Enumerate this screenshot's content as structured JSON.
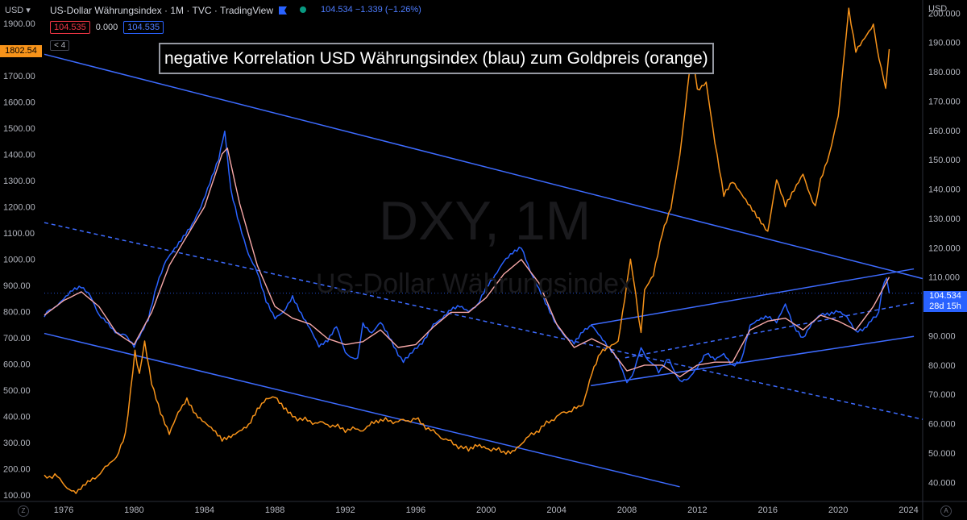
{
  "header": {
    "currency": "USD",
    "title": "US-Dollar Währungsindex · 1M · TVC · TradingView",
    "ohlc": "104.534 −1.339 (−1.26%)",
    "badge_sell": "104.535",
    "badge_spread": "0.000",
    "badge_buy": "104.535",
    "indicator_count": "4"
  },
  "right_axis_unit": "USD",
  "annotation": "negative Korrelation USD Währungsindex (blau) zum Goldpreis (orange)",
  "watermark": {
    "symbol": "DXY, 1M",
    "name": "US-Dollar Währungsindex"
  },
  "price_labels": {
    "gold_current": "1802.54",
    "dxy_current": "104.534",
    "dxy_countdown": "28d 15h"
  },
  "colors": {
    "dxy": "#2962ff",
    "dxy_ma": "#f7a8a8",
    "gold": "#f7931a",
    "trendline": "#3d6bff",
    "background": "#000000"
  },
  "chart_data": {
    "type": "line",
    "title": "",
    "x_ticks": [
      "1976",
      "1980",
      "1984",
      "1988",
      "1992",
      "1996",
      "2000",
      "2004",
      "2008",
      "2012",
      "2016",
      "2020",
      "2024"
    ],
    "left_axis": {
      "ticks": [
        "1900.00",
        "1800.00",
        "1700.00",
        "1600.00",
        "1500.00",
        "1400.00",
        "1300.00",
        "1200.00",
        "1100.00",
        "1000.00",
        "900.00",
        "800.00",
        "700.00",
        "600.00",
        "500.00",
        "400.00",
        "300.00",
        "200.00",
        "100.00"
      ],
      "range": [
        75,
        1990
      ]
    },
    "right_axis": {
      "ticks": [
        "200.000",
        "190.000",
        "180.000",
        "170.000",
        "160.000",
        "150.000",
        "140.000",
        "130.000",
        "120.000",
        "110.000",
        "100.000",
        "90.000",
        "80.000",
        "70.000",
        "60.000",
        "50.000",
        "40.000"
      ],
      "range": [
        33.5,
        204.5
      ]
    },
    "series": [
      {
        "axis": "right",
        "color": "#2962ff",
        "x": [
          1974.9,
          1975.5,
          1976.0,
          1976.5,
          1977.0,
          1977.5,
          1978.0,
          1978.8,
          1979.5,
          1980.0,
          1980.3,
          1980.8,
          1981.3,
          1981.8,
          1982.3,
          1982.8,
          1983.3,
          1983.8,
          1984.3,
          1984.8,
          1985.15,
          1985.5,
          1986.0,
          1986.5,
          1987.0,
          1987.5,
          1988.0,
          1988.5,
          1989.0,
          1989.5,
          1990.0,
          1990.5,
          1991.0,
          1991.5,
          1992.0,
          1992.7,
          1993.0,
          1993.5,
          1994.0,
          1994.5,
          1995.0,
          1995.3,
          1995.8,
          1996.5,
          1997.0,
          1997.5,
          1998.0,
          1998.5,
          1999.0,
          1999.5,
          2000.0,
          2000.5,
          2001.0,
          2001.5,
          2002.0,
          2002.5,
          2003.0,
          2003.5,
          2004.0,
          2004.5,
          2005.0,
          2005.5,
          2006.0,
          2006.5,
          2007.0,
          2007.5,
          2008.0,
          2008.3,
          2008.8,
          2009.2,
          2009.8,
          2010.4,
          2011.0,
          2011.5,
          2012.0,
          2012.5,
          2013.0,
          2013.5,
          2014.0,
          2014.5,
          2015.0,
          2015.5,
          2016.0,
          2016.5,
          2017.0,
          2017.5,
          2018.0,
          2018.5,
          2019.0,
          2019.5,
          2020.0,
          2020.5,
          2021.0,
          2021.5,
          2022.0,
          2022.3,
          2022.5,
          2022.75,
          2022.9
        ],
        "y": [
          97,
          100,
          103,
          106,
          107,
          104,
          97,
          92,
          90,
          86,
          90,
          96,
          108,
          116,
          120,
          124,
          128,
          134,
          142,
          150,
          160,
          140,
          128,
          118,
          112,
          102,
          96,
          98,
          103,
          97,
          92,
          86,
          88,
          93,
          84,
          82,
          94,
          91,
          95,
          90,
          84,
          81,
          84,
          89,
          94,
          96,
          99,
          100,
          98,
          100,
          106,
          110,
          115,
          118,
          120,
          112,
          106,
          100,
          94,
          90,
          88,
          92,
          94,
          90,
          86,
          82,
          74,
          76,
          86,
          82,
          78,
          82,
          74,
          75,
          79,
          84,
          82,
          84,
          80,
          82,
          94,
          96,
          97,
          95,
          101,
          93,
          89,
          94,
          97,
          97,
          98,
          96,
          91,
          92,
          96,
          98,
          106,
          110,
          104.5
        ]
      },
      {
        "axis": "right",
        "color": "#f7a8a8",
        "x": [
          1974.9,
          1976.0,
          1977.0,
          1978.0,
          1979.0,
          1980.0,
          1981.0,
          1982.0,
          1983.0,
          1984.0,
          1985.0,
          1985.3,
          1986.0,
          1987.0,
          1988.0,
          1989.0,
          1990.0,
          1991.0,
          1992.0,
          1993.0,
          1994.0,
          1995.0,
          1996.0,
          1997.0,
          1998.0,
          1999.0,
          2000.0,
          2001.0,
          2002.0,
          2003.0,
          2004.0,
          2005.0,
          2006.0,
          2007.0,
          2008.0,
          2009.0,
          2010.0,
          2011.0,
          2012.0,
          2013.0,
          2014.0,
          2015.0,
          2016.0,
          2017.0,
          2018.0,
          2019.0,
          2020.0,
          2021.0,
          2022.0,
          2022.9
        ],
        "y": [
          97,
          102,
          105,
          100,
          91,
          87,
          98,
          114,
          124,
          134,
          152,
          154,
          135,
          114,
          100,
          96,
          94,
          89,
          87,
          88,
          92,
          86,
          87,
          93,
          98,
          98,
          103,
          111,
          116,
          108,
          94,
          86,
          89,
          86,
          78,
          80,
          80,
          76,
          80,
          81,
          81,
          92,
          95,
          96,
          92,
          97,
          95,
          92,
          100,
          110
        ]
      },
      {
        "axis": "left",
        "color": "#f7931a",
        "x": [
          1974.9,
          1975.5,
          1976.2,
          1976.7,
          1977.5,
          1978.5,
          1979.0,
          1979.5,
          1979.8,
          1980.05,
          1980.3,
          1980.6,
          1981.0,
          1981.5,
          1982.0,
          1982.5,
          1983.0,
          1983.5,
          1984.0,
          1984.5,
          1985.0,
          1985.5,
          1986.0,
          1986.5,
          1987.0,
          1987.5,
          1988.0,
          1988.5,
          1989.0,
          1990.0,
          1991.0,
          1992.0,
          1993.0,
          1993.5,
          1994.0,
          1995.0,
          1996.0,
          1997.0,
          1998.0,
          1999.0,
          1999.5,
          2000.0,
          2001.0,
          2001.5,
          2002.0,
          2003.0,
          2004.0,
          2005.0,
          2005.5,
          2006.0,
          2006.5,
          2007.0,
          2007.5,
          2008.0,
          2008.2,
          2008.8,
          2009.0,
          2009.5,
          2010.0,
          2010.5,
          2011.0,
          2011.7,
          2012.0,
          2012.5,
          2013.0,
          2013.5,
          2014.0,
          2014.5,
          2015.0,
          2015.5,
          2016.0,
          2016.5,
          2017.0,
          2017.5,
          2018.0,
          2018.7,
          2019.0,
          2019.5,
          2020.0,
          2020.6,
          2021.0,
          2021.5,
          2022.0,
          2022.2,
          2022.7,
          2022.9
        ],
        "y": [
          165,
          175,
          130,
          115,
          150,
          210,
          240,
          330,
          500,
          650,
          560,
          680,
          530,
          420,
          340,
          420,
          470,
          410,
          380,
          350,
          310,
          320,
          340,
          360,
          420,
          460,
          470,
          430,
          400,
          380,
          370,
          350,
          350,
          380,
          385,
          380,
          390,
          340,
          300,
          270,
          290,
          280,
          265,
          270,
          300,
          350,
          400,
          430,
          440,
          560,
          640,
          660,
          680,
          900,
          1000,
          720,
          880,
          940,
          1100,
          1200,
          1400,
          1800,
          1650,
          1680,
          1450,
          1250,
          1300,
          1250,
          1200,
          1150,
          1100,
          1300,
          1200,
          1260,
          1320,
          1200,
          1300,
          1400,
          1550,
          1950,
          1800,
          1850,
          1900,
          1800,
          1650,
          1802.54
        ]
      }
    ],
    "trendlines": [
      {
        "axis": "right",
        "style": "solid",
        "from": [
          1974.9,
          186.0
        ],
        "to": [
          2024.8,
          109.5
        ]
      },
      {
        "axis": "right",
        "style": "solid",
        "from": [
          1974.9,
          90.8
        ],
        "to": [
          2011.0,
          38.5
        ]
      },
      {
        "axis": "right",
        "style": "dashed",
        "from": [
          1974.9,
          128.6
        ],
        "to": [
          2024.8,
          61.5
        ]
      },
      {
        "axis": "right",
        "style": "solid",
        "from": [
          2005.95,
          93.7
        ],
        "to": [
          2024.3,
          112.8
        ]
      },
      {
        "axis": "right",
        "style": "solid",
        "from": [
          2005.95,
          73.0
        ],
        "to": [
          2024.3,
          89.8
        ]
      },
      {
        "axis": "right",
        "style": "dashed",
        "from": [
          2007.9,
          82.5
        ],
        "to": [
          2024.3,
          101.2
        ]
      }
    ],
    "crosshair_y": 104.534,
    "grid": false
  }
}
